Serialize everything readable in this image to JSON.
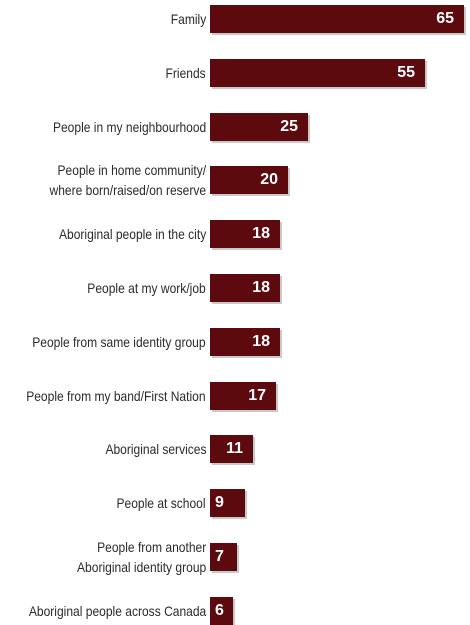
{
  "chart_data": {
    "type": "bar",
    "orientation": "horizontal",
    "categories": [
      "Family",
      "Friends",
      "People in my neighbourhood",
      "People in home community/\nwhere born/raised/on reserve",
      "Aboriginal people in the city",
      "People at my work/job",
      "People from same identity group",
      "People from my band/First Nation",
      "Aboriginal services",
      "People at school",
      "People from another\nAboriginal identity group",
      "Aboriginal people across Canada"
    ],
    "values": [
      65,
      55,
      25,
      20,
      18,
      18,
      18,
      17,
      11,
      9,
      7,
      6
    ],
    "value_labels": [
      "65",
      "55",
      "25",
      "20",
      "18",
      "18",
      "18",
      "17",
      "11",
      "9",
      "7",
      "6"
    ],
    "xlim": [
      0,
      65
    ],
    "grid": false,
    "legend": "none",
    "colors": {
      "bar": "#5c0a0e",
      "value_text": "#ffffff",
      "label_text": "#2b2b2b"
    }
  }
}
